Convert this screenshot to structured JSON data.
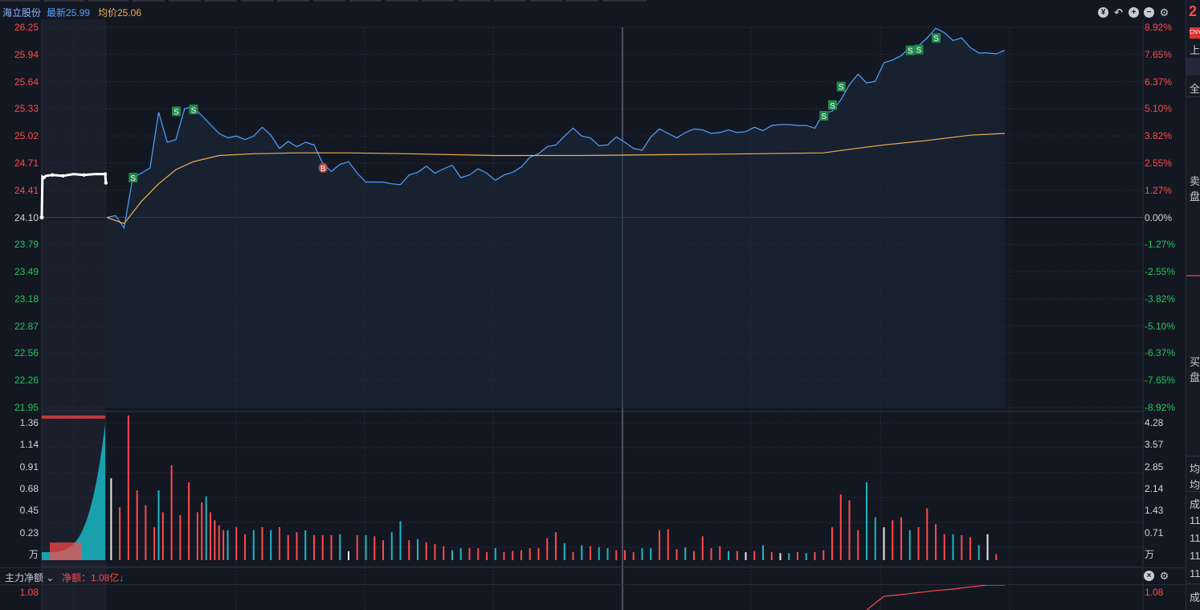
{
  "header": {
    "stock_name": "海立股份",
    "latest": "最新25.99",
    "avg": "均价25.06"
  },
  "toolbar_icons": [
    "fund-icon",
    "undo-icon",
    "zoom-in-icon",
    "zoom-out-icon",
    "gear-icon"
  ],
  "colors": {
    "up": "#ff4a4a",
    "down": "#22c55e",
    "price_line": "#4fa3ff",
    "avg_line": "#f0b050",
    "volume_cyan": "#17b8c4",
    "sell_marker": "#1f8a4c",
    "buy_marker": "#b94a4a"
  },
  "chart_data": [
    {
      "type": "line",
      "name": "intraday-price",
      "prev_close": 24.1,
      "ylim": [
        21.95,
        26.25
      ],
      "left_ticks": [
        "26.25",
        "25.94",
        "25.64",
        "25.33",
        "25.02",
        "24.71",
        "24.41",
        "24.10",
        "23.79",
        "23.49",
        "23.18",
        "22.87",
        "22.56",
        "22.26",
        "21.95"
      ],
      "right_ticks": [
        "8.92%",
        "7.65%",
        "6.37%",
        "5.10%",
        "3.82%",
        "2.55%",
        "1.27%",
        "0.00%",
        "-1.27%",
        "-2.55%",
        "-3.82%",
        "-5.10%",
        "-6.37%",
        "-7.65%",
        "-8.92%"
      ],
      "session_minutes": 240,
      "auction": [
        {
          "x": 0,
          "y": 24.1
        },
        {
          "x": 0.3,
          "y": 24.56
        },
        {
          "x": 1,
          "y": 24.55
        },
        {
          "x": 2,
          "y": 24.57
        },
        {
          "x": 5,
          "y": 24.58
        },
        {
          "x": 10,
          "y": 24.57
        },
        {
          "x": 15,
          "y": 24.59
        },
        {
          "x": 20,
          "y": 24.58
        },
        {
          "x": 25,
          "y": 24.59
        },
        {
          "x": 30,
          "y": 24.59
        },
        {
          "x": 30.3,
          "y": 24.49
        }
      ],
      "price": [
        [
          0,
          24.1
        ],
        [
          2,
          24.12
        ],
        [
          4,
          23.98
        ],
        [
          6,
          24.55
        ],
        [
          8,
          24.6
        ],
        [
          10,
          24.66
        ],
        [
          12,
          25.29
        ],
        [
          14,
          24.95
        ],
        [
          16,
          24.98
        ],
        [
          18,
          25.33
        ],
        [
          20,
          25.35
        ],
        [
          22,
          25.25
        ],
        [
          24,
          25.15
        ],
        [
          26,
          25.05
        ],
        [
          28,
          25.0
        ],
        [
          30,
          25.02
        ],
        [
          32,
          24.98
        ],
        [
          34,
          25.02
        ],
        [
          36,
          25.12
        ],
        [
          38,
          25.03
        ],
        [
          40,
          24.88
        ],
        [
          42,
          24.96
        ],
        [
          44,
          24.9
        ],
        [
          46,
          24.95
        ],
        [
          48,
          24.92
        ],
        [
          50,
          24.71
        ],
        [
          52,
          24.62
        ],
        [
          54,
          24.7
        ],
        [
          56,
          24.73
        ],
        [
          58,
          24.6
        ],
        [
          60,
          24.5
        ],
        [
          62,
          24.5
        ],
        [
          64,
          24.5
        ],
        [
          66,
          24.48
        ],
        [
          68,
          24.47
        ],
        [
          70,
          24.58
        ],
        [
          72,
          24.61
        ],
        [
          74,
          24.68
        ],
        [
          76,
          24.6
        ],
        [
          78,
          24.65
        ],
        [
          80,
          24.69
        ],
        [
          82,
          24.55
        ],
        [
          84,
          24.58
        ],
        [
          86,
          24.65
        ],
        [
          88,
          24.6
        ],
        [
          90,
          24.52
        ],
        [
          92,
          24.58
        ],
        [
          94,
          24.61
        ],
        [
          96,
          24.67
        ],
        [
          98,
          24.78
        ],
        [
          100,
          24.82
        ],
        [
          102,
          24.9
        ],
        [
          104,
          24.92
        ],
        [
          106,
          25.02
        ],
        [
          108,
          25.11
        ],
        [
          110,
          25.02
        ],
        [
          112,
          25.0
        ],
        [
          114,
          24.91
        ],
        [
          116,
          24.92
        ],
        [
          118,
          25.01
        ],
        [
          120,
          24.95
        ],
        [
          122,
          24.88
        ],
        [
          124,
          24.86
        ],
        [
          126,
          25.01
        ],
        [
          128,
          25.1
        ],
        [
          130,
          25.05
        ],
        [
          132,
          25.0
        ],
        [
          134,
          25.06
        ],
        [
          136,
          25.1
        ],
        [
          138,
          25.09
        ],
        [
          140,
          25.05
        ],
        [
          142,
          25.06
        ],
        [
          144,
          25.09
        ],
        [
          146,
          25.06
        ],
        [
          148,
          25.07
        ],
        [
          150,
          25.12
        ],
        [
          152,
          25.08
        ],
        [
          154,
          25.14
        ],
        [
          156,
          25.15
        ],
        [
          158,
          25.15
        ],
        [
          160,
          25.14
        ],
        [
          162,
          25.14
        ],
        [
          164,
          25.11
        ],
        [
          166,
          25.28
        ],
        [
          168,
          25.3
        ],
        [
          170,
          25.43
        ],
        [
          172,
          25.6
        ],
        [
          174,
          25.72
        ],
        [
          176,
          25.62
        ],
        [
          178,
          25.64
        ],
        [
          180,
          25.85
        ],
        [
          182,
          25.88
        ],
        [
          184,
          25.93
        ],
        [
          186,
          26.02
        ],
        [
          188,
          26.04
        ],
        [
          190,
          26.13
        ],
        [
          192,
          26.24
        ],
        [
          194,
          26.19
        ],
        [
          196,
          26.1
        ],
        [
          198,
          26.13
        ],
        [
          200,
          26.02
        ],
        [
          202,
          25.96
        ],
        [
          204,
          25.96
        ],
        [
          206,
          25.95
        ],
        [
          208,
          25.99
        ]
      ],
      "avg_line": [
        [
          0,
          24.1
        ],
        [
          4,
          24.03
        ],
        [
          8,
          24.28
        ],
        [
          12,
          24.48
        ],
        [
          16,
          24.64
        ],
        [
          20,
          24.73
        ],
        [
          26,
          24.8
        ],
        [
          34,
          24.82
        ],
        [
          44,
          24.83
        ],
        [
          56,
          24.83
        ],
        [
          70,
          24.82
        ],
        [
          90,
          24.8
        ],
        [
          110,
          24.8
        ],
        [
          130,
          24.81
        ],
        [
          150,
          24.82
        ],
        [
          166,
          24.83
        ],
        [
          172,
          24.87
        ],
        [
          180,
          24.92
        ],
        [
          190,
          24.97
        ],
        [
          200,
          25.03
        ],
        [
          208,
          25.05
        ]
      ],
      "markers": [
        {
          "x": 6,
          "y": 24.55,
          "label": "S",
          "kind": "sell"
        },
        {
          "x": 16,
          "y": 25.3,
          "label": "S",
          "kind": "sell"
        },
        {
          "x": 20,
          "y": 25.32,
          "label": "S",
          "kind": "sell"
        },
        {
          "x": 50,
          "y": 24.66,
          "label": "B",
          "kind": "buy"
        },
        {
          "x": 166,
          "y": 25.25,
          "label": "S",
          "kind": "sell"
        },
        {
          "x": 168,
          "y": 25.37,
          "label": "S",
          "kind": "sell"
        },
        {
          "x": 170,
          "y": 25.58,
          "label": "S",
          "kind": "sell"
        },
        {
          "x": 186,
          "y": 25.99,
          "label": "S",
          "kind": "sell"
        },
        {
          "x": 188,
          "y": 26.0,
          "label": "S",
          "kind": "sell"
        },
        {
          "x": 192,
          "y": 26.13,
          "label": "S",
          "kind": "sell"
        }
      ]
    },
    {
      "type": "bar",
      "name": "volume",
      "unit": "万",
      "ylim": [
        0,
        1.45
      ],
      "left_ticks": [
        "1.36",
        "1.14",
        "0.91",
        "0.68",
        "0.45",
        "0.23",
        "万"
      ],
      "right_ticks": [
        "4.28",
        "3.57",
        "2.85",
        "2.14",
        "1.43",
        "0.71",
        "万"
      ],
      "auction_fill_color": "#17b8c4",
      "bars": [
        [
          1,
          0.82,
          "w"
        ],
        [
          3,
          0.53,
          "r"
        ],
        [
          5,
          1.45,
          "r"
        ],
        [
          7,
          0.7,
          "r"
        ],
        [
          9,
          0.55,
          "r"
        ],
        [
          11,
          0.33,
          "r"
        ],
        [
          12,
          0.7,
          "c"
        ],
        [
          13,
          0.48,
          "r"
        ],
        [
          15,
          0.95,
          "r"
        ],
        [
          17,
          0.45,
          "r"
        ],
        [
          19,
          0.78,
          "r"
        ],
        [
          21,
          0.48,
          "r"
        ],
        [
          22,
          0.58,
          "r"
        ],
        [
          23,
          0.64,
          "c"
        ],
        [
          24,
          0.48,
          "r"
        ],
        [
          25,
          0.4,
          "r"
        ],
        [
          26,
          0.35,
          "r"
        ],
        [
          27,
          0.3,
          "r"
        ],
        [
          28,
          0.3,
          "c"
        ],
        [
          30,
          0.33,
          "r"
        ],
        [
          32,
          0.26,
          "r"
        ],
        [
          34,
          0.3,
          "c"
        ],
        [
          36,
          0.33,
          "r"
        ],
        [
          38,
          0.3,
          "c"
        ],
        [
          40,
          0.33,
          "r"
        ],
        [
          42,
          0.25,
          "r"
        ],
        [
          44,
          0.28,
          "r"
        ],
        [
          46,
          0.3,
          "c"
        ],
        [
          48,
          0.25,
          "r"
        ],
        [
          50,
          0.25,
          "r"
        ],
        [
          52,
          0.25,
          "r"
        ],
        [
          54,
          0.26,
          "c"
        ],
        [
          56,
          0.09,
          "w"
        ],
        [
          58,
          0.25,
          "r"
        ],
        [
          60,
          0.25,
          "c"
        ],
        [
          62,
          0.24,
          "r"
        ],
        [
          64,
          0.2,
          "r"
        ],
        [
          66,
          0.28,
          "c"
        ],
        [
          68,
          0.39,
          "c"
        ],
        [
          70,
          0.2,
          "r"
        ],
        [
          72,
          0.21,
          "c"
        ],
        [
          74,
          0.18,
          "r"
        ],
        [
          76,
          0.16,
          "r"
        ],
        [
          78,
          0.14,
          "r"
        ],
        [
          80,
          0.1,
          "c"
        ],
        [
          82,
          0.12,
          "c"
        ],
        [
          84,
          0.12,
          "r"
        ],
        [
          86,
          0.12,
          "r"
        ],
        [
          88,
          0.08,
          "r"
        ],
        [
          90,
          0.12,
          "c"
        ],
        [
          92,
          0.08,
          "r"
        ],
        [
          94,
          0.09,
          "r"
        ],
        [
          96,
          0.1,
          "r"
        ],
        [
          98,
          0.12,
          "r"
        ],
        [
          100,
          0.12,
          "r"
        ],
        [
          102,
          0.22,
          "r"
        ],
        [
          104,
          0.28,
          "r"
        ],
        [
          106,
          0.17,
          "c"
        ],
        [
          108,
          0.08,
          "r"
        ],
        [
          110,
          0.15,
          "c"
        ],
        [
          112,
          0.14,
          "r"
        ],
        [
          114,
          0.13,
          "c"
        ],
        [
          116,
          0.12,
          "c"
        ],
        [
          118,
          0.1,
          "r"
        ],
        [
          120,
          0.1,
          "r"
        ],
        [
          122,
          0.08,
          "r"
        ],
        [
          124,
          0.12,
          "c"
        ],
        [
          126,
          0.12,
          "c"
        ],
        [
          128,
          0.3,
          "r"
        ],
        [
          130,
          0.31,
          "r"
        ],
        [
          132,
          0.11,
          "r"
        ],
        [
          134,
          0.13,
          "c"
        ],
        [
          136,
          0.09,
          "r"
        ],
        [
          138,
          0.24,
          "r"
        ],
        [
          140,
          0.12,
          "r"
        ],
        [
          142,
          0.14,
          "r"
        ],
        [
          144,
          0.09,
          "c"
        ],
        [
          146,
          0.09,
          "r"
        ],
        [
          148,
          0.08,
          "w"
        ],
        [
          150,
          0.09,
          "r"
        ],
        [
          152,
          0.15,
          "c"
        ],
        [
          154,
          0.08,
          "r"
        ],
        [
          156,
          0.07,
          "w"
        ],
        [
          158,
          0.07,
          "c"
        ],
        [
          160,
          0.08,
          "r"
        ],
        [
          162,
          0.07,
          "c"
        ],
        [
          164,
          0.08,
          "r"
        ],
        [
          166,
          0.1,
          "r"
        ],
        [
          168,
          0.33,
          "r"
        ],
        [
          170,
          0.66,
          "r"
        ],
        [
          172,
          0.6,
          "r"
        ],
        [
          174,
          0.3,
          "r"
        ],
        [
          176,
          0.78,
          "c"
        ],
        [
          178,
          0.43,
          "c"
        ],
        [
          180,
          0.33,
          "w"
        ],
        [
          182,
          0.4,
          "r"
        ],
        [
          184,
          0.43,
          "r"
        ],
        [
          186,
          0.3,
          "c"
        ],
        [
          188,
          0.33,
          "r"
        ],
        [
          190,
          0.52,
          "r"
        ],
        [
          192,
          0.36,
          "r"
        ],
        [
          194,
          0.26,
          "r"
        ],
        [
          196,
          0.26,
          "c"
        ],
        [
          198,
          0.25,
          "r"
        ],
        [
          200,
          0.23,
          "r"
        ],
        [
          202,
          0.15,
          "c"
        ],
        [
          204,
          0.26,
          "w"
        ],
        [
          206,
          0.06,
          "r"
        ]
      ]
    },
    {
      "type": "line",
      "name": "main-net-inflow",
      "indicator_label": "主力净额",
      "net_label": "净额：1.08亿",
      "left_ticks": [
        "1.08"
      ],
      "right_ticks": [
        "1.08"
      ],
      "points": [
        [
          176,
          0
        ],
        [
          180,
          0.55
        ],
        [
          184,
          0.62
        ],
        [
          188,
          0.7
        ],
        [
          192,
          0.78
        ],
        [
          196,
          0.84
        ],
        [
          200,
          0.93
        ],
        [
          204,
          1.0
        ],
        [
          208,
          1.0
        ]
      ]
    }
  ],
  "sidebar": {
    "price_digit": "2",
    "cny": "CNY",
    "items": [
      "上",
      "全",
      "卖",
      "盘",
      "买",
      "盘",
      "均",
      "均",
      "成",
      "11",
      "11",
      "11",
      "11",
      "成"
    ]
  }
}
